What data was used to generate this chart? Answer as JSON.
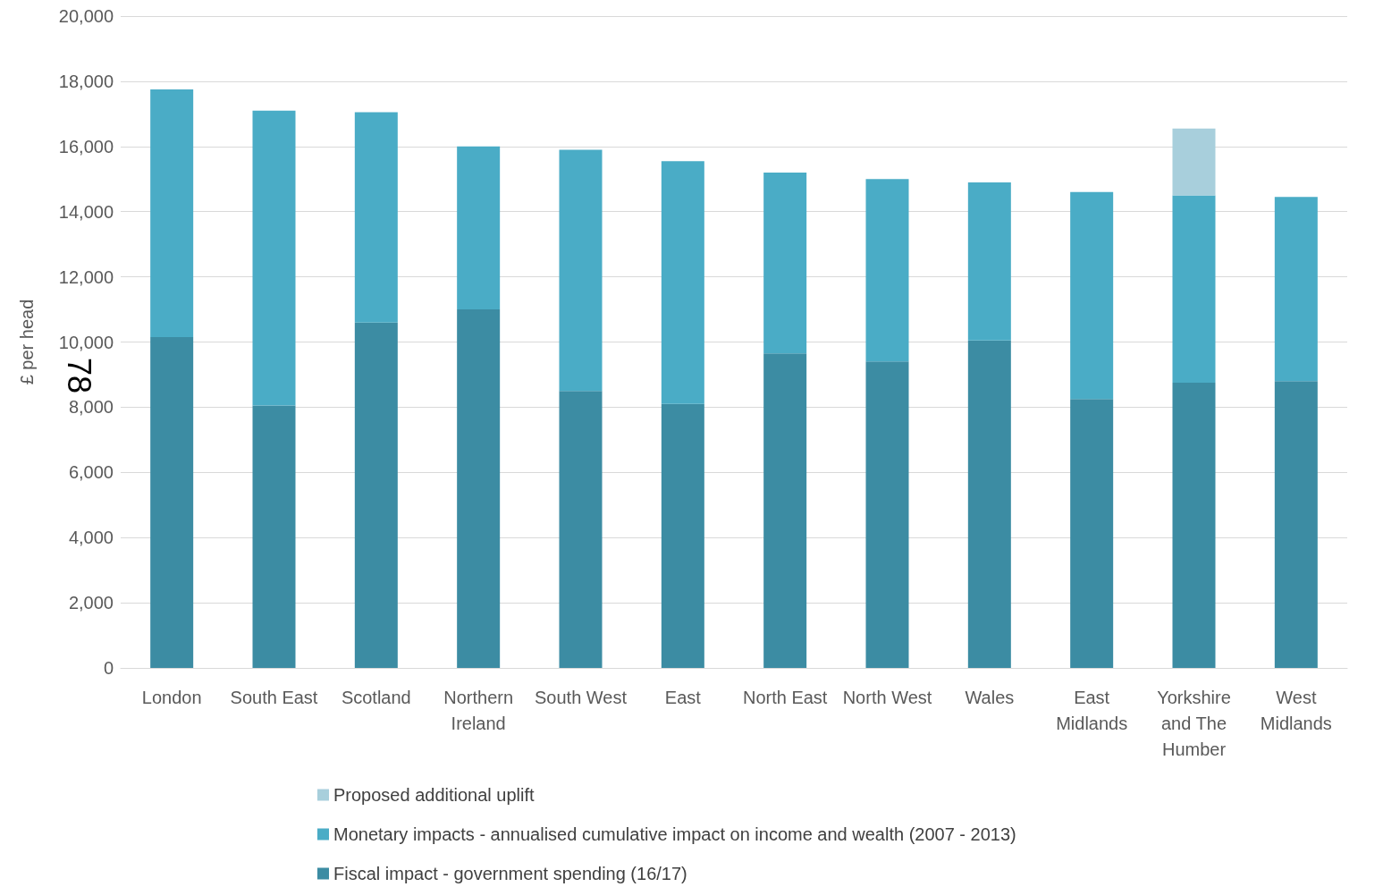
{
  "chart_data": {
    "type": "bar",
    "ylabel": "£ per head",
    "stacked": true,
    "grid": "y",
    "legend": "bottom",
    "categories": [
      "London",
      "South East",
      "Scotland",
      "Northern\nIreland",
      "South West",
      "East",
      "North East",
      "North West",
      "Wales",
      "East\nMidlands",
      "Yorkshire\nand The\nHumber",
      "West\nMidlands"
    ],
    "ylim": [
      0,
      20000
    ],
    "yticks": [
      {
        "value": 0,
        "label": "0"
      },
      {
        "value": 2000,
        "label": "2,000"
      },
      {
        "value": 4000,
        "label": "4,000"
      },
      {
        "value": 6000,
        "label": "6,000"
      },
      {
        "value": 8000,
        "label": "8,000"
      },
      {
        "value": 10000,
        "label": "10,000"
      },
      {
        "value": 12000,
        "label": "12,000"
      },
      {
        "value": 14000,
        "label": "14,000"
      },
      {
        "value": 16000,
        "label": "16,000"
      },
      {
        "value": 18000,
        "label": "18,000"
      },
      {
        "value": 20000,
        "label": "20,000"
      }
    ],
    "series": [
      {
        "name": "Fiscal impact - government spending (16/17)",
        "color": "#3c8ca3",
        "values": [
          10150,
          8050,
          10600,
          11000,
          8500,
          8100,
          9650,
          9400,
          10050,
          8250,
          8750,
          8800
        ]
      },
      {
        "name": "Monetary impacts - annualised cumulative impact on income and wealth (2007 - 2013)",
        "color": "#4aacc6",
        "values": [
          7600,
          9050,
          6450,
          5000,
          7400,
          7450,
          5550,
          5600,
          4850,
          6350,
          5750,
          5650
        ]
      },
      {
        "name": "Proposed additional uplift",
        "color": "#a8cfdc",
        "values": [
          null,
          null,
          null,
          null,
          null,
          null,
          null,
          null,
          null,
          null,
          2050,
          null
        ]
      }
    ],
    "annotations": [
      "78"
    ]
  }
}
